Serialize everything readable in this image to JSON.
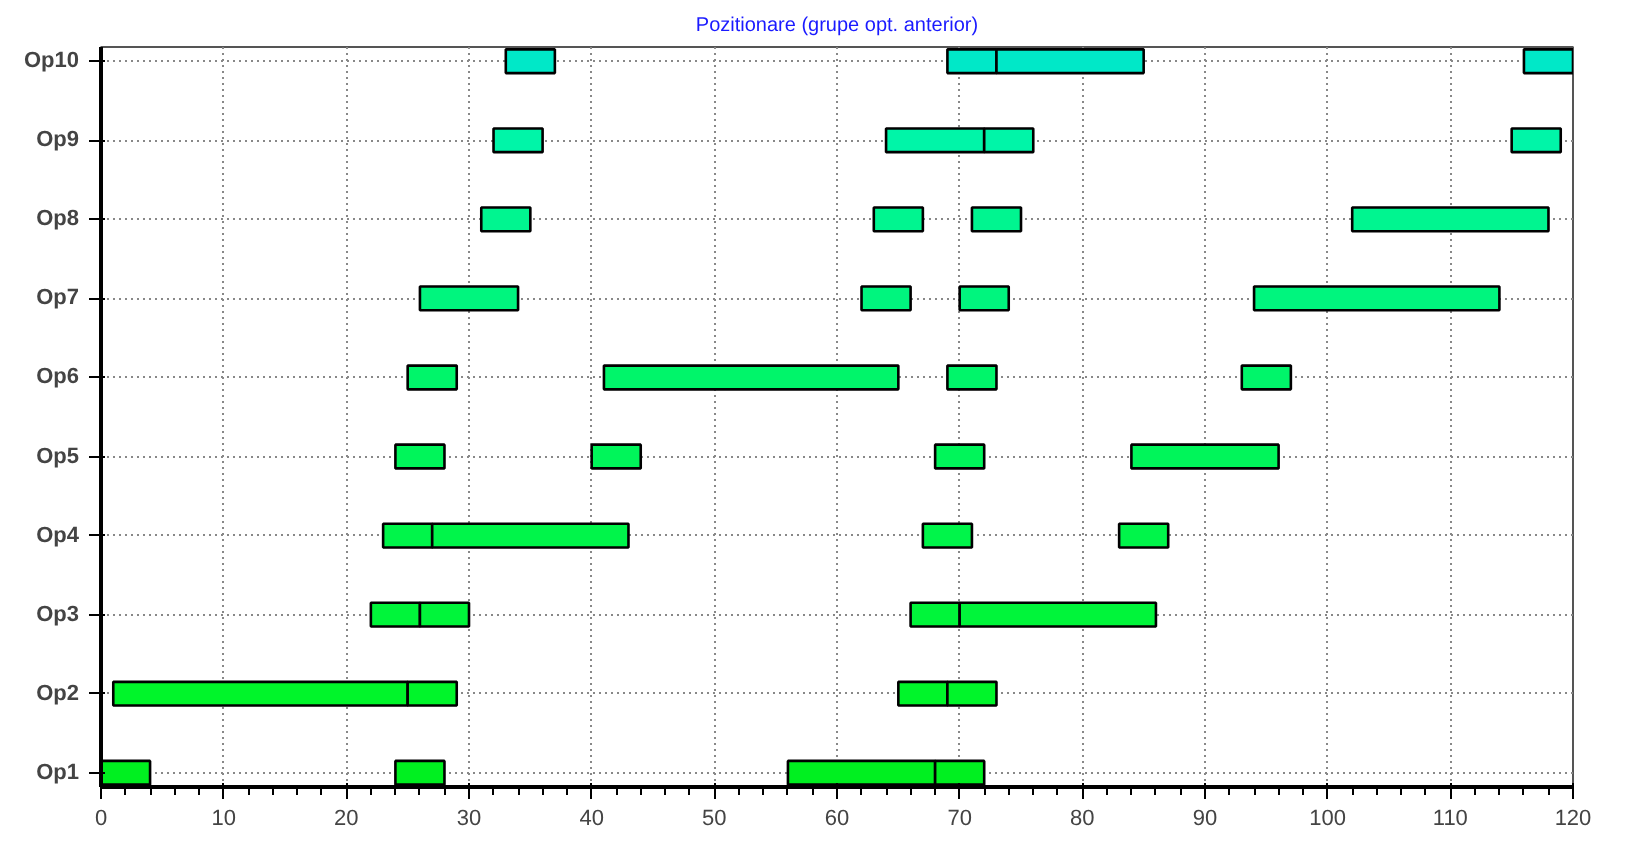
{
  "chart_data": {
    "type": "bar",
    "orientation": "horizontal",
    "title": "Pozitionare (grupe opt. anterior)",
    "categories": [
      "Op10",
      "Op9",
      "Op8",
      "Op7",
      "Op6",
      "Op5",
      "Op4",
      "Op3",
      "Op2",
      "Op1"
    ],
    "series": [
      {
        "values": [
          4,
          4,
          4,
          8,
          4,
          4,
          4,
          4,
          24,
          4
        ],
        "base": [
          33,
          32,
          31,
          26,
          25,
          24,
          23,
          22,
          1,
          0
        ],
        "colors": [
          "#00e8c8",
          "#00f5a8",
          "#00f590",
          "#00f57e",
          "#00f56a",
          "#00f55a",
          "#00f54a",
          "#00f53a",
          "#00f52a",
          "#00f020"
        ]
      },
      {
        "values": [
          4,
          8,
          4,
          4,
          24,
          4,
          16,
          4,
          4,
          4
        ],
        "base": [
          69,
          64,
          63,
          62,
          41,
          40,
          27,
          26,
          25,
          24
        ],
        "colors": [
          "#00e8c8",
          "#00f5a8",
          "#00f590",
          "#00f57e",
          "#00f56a",
          "#00f55a",
          "#00f54a",
          "#00f53a",
          "#00f52a",
          "#00f020"
        ]
      },
      {
        "values": [
          12,
          4,
          4,
          4,
          4,
          4,
          4,
          4,
          4,
          12
        ],
        "base": [
          73,
          72,
          71,
          70,
          69,
          68,
          67,
          66,
          65,
          56
        ],
        "colors": [
          "#00e8c8",
          "#00f5a8",
          "#00f590",
          "#00f57e",
          "#00f56a",
          "#00f55a",
          "#00f54a",
          "#00f53a",
          "#00f52a",
          "#00f020"
        ]
      },
      {
        "values": [
          4,
          4,
          16,
          20,
          4,
          12,
          4,
          16,
          4,
          4
        ],
        "base": [
          116,
          115,
          102,
          94,
          93,
          84,
          83,
          70,
          69,
          68
        ],
        "colors": [
          "#00e8c8",
          "#00f5a8",
          "#00f590",
          "#00f57e",
          "#00f56a",
          "#00f55a",
          "#00f54a",
          "#00f53a",
          "#00f52a",
          "#00f020"
        ]
      }
    ],
    "xlim": [
      0,
      120
    ],
    "xticks": [
      0,
      10,
      20,
      30,
      40,
      50,
      60,
      70,
      80,
      90,
      100,
      110,
      120
    ],
    "grid": true
  }
}
